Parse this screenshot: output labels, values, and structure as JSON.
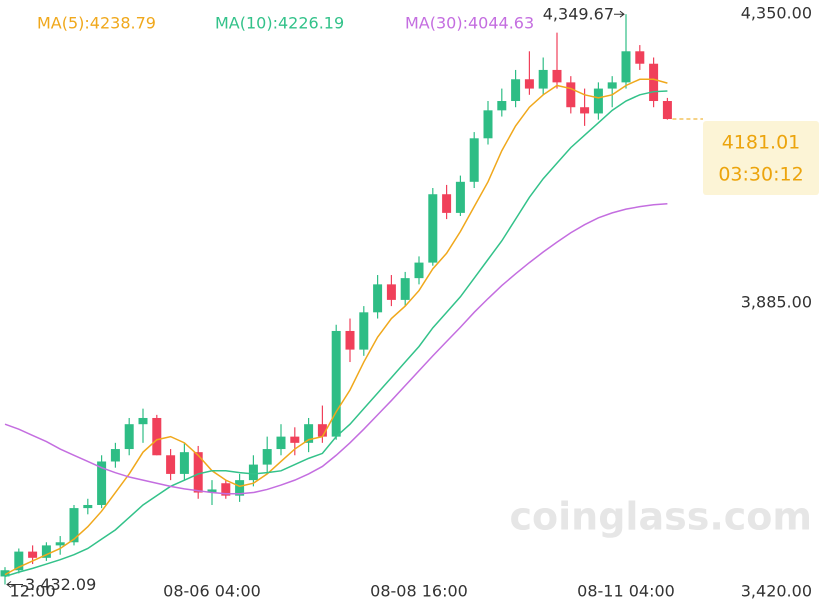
{
  "chart_data": {
    "type": "candlestick",
    "categories": [
      null,
      null,
      "12:00",
      null,
      null,
      null,
      null,
      null,
      null,
      null,
      null,
      null,
      null,
      null,
      null,
      "08-06 04:00",
      null,
      null,
      null,
      null,
      null,
      null,
      null,
      null,
      null,
      null,
      null,
      null,
      null,
      null,
      "08-08 16:00",
      null,
      null,
      null,
      null,
      null,
      null,
      null,
      null,
      null,
      null,
      null,
      null,
      null,
      null,
      "08-11 04:00",
      null,
      null,
      null
    ],
    "ohlc": [
      [
        3445,
        3460,
        3432.09,
        3455
      ],
      [
        3455,
        3490,
        3450,
        3485
      ],
      [
        3485,
        3495,
        3465,
        3475
      ],
      [
        3475,
        3500,
        3470,
        3495
      ],
      [
        3495,
        3510,
        3480,
        3500
      ],
      [
        3500,
        3560,
        3495,
        3555
      ],
      [
        3555,
        3570,
        3545,
        3560
      ],
      [
        3560,
        3640,
        3555,
        3630
      ],
      [
        3630,
        3660,
        3620,
        3650
      ],
      [
        3650,
        3700,
        3640,
        3690
      ],
      [
        3690,
        3715,
        3660,
        3700
      ],
      [
        3700,
        3705,
        3640,
        3640
      ],
      [
        3640,
        3650,
        3600,
        3610
      ],
      [
        3610,
        3660,
        3600,
        3645
      ],
      [
        3645,
        3655,
        3570,
        3580
      ],
      [
        3580,
        3600,
        3560,
        3585
      ],
      [
        3595,
        3600,
        3570,
        3575
      ],
      [
        3575,
        3610,
        3565,
        3600
      ],
      [
        3600,
        3640,
        3590,
        3625
      ],
      [
        3625,
        3670,
        3610,
        3650
      ],
      [
        3650,
        3690,
        3640,
        3670
      ],
      [
        3670,
        3685,
        3640,
        3660
      ],
      [
        3660,
        3700,
        3645,
        3690
      ],
      [
        3690,
        3720,
        3660,
        3670
      ],
      [
        3670,
        3850,
        3665,
        3840
      ],
      [
        3840,
        3860,
        3790,
        3810
      ],
      [
        3810,
        3880,
        3800,
        3870
      ],
      [
        3870,
        3930,
        3860,
        3915
      ],
      [
        3915,
        3930,
        3880,
        3890
      ],
      [
        3890,
        3935,
        3880,
        3925
      ],
      [
        3925,
        3960,
        3915,
        3950
      ],
      [
        3950,
        4070,
        3945,
        4060
      ],
      [
        4060,
        4075,
        4020,
        4030
      ],
      [
        4030,
        4090,
        4025,
        4080
      ],
      [
        4080,
        4160,
        4070,
        4150
      ],
      [
        4150,
        4210,
        4140,
        4195
      ],
      [
        4195,
        4230,
        4185,
        4210
      ],
      [
        4210,
        4260,
        4200,
        4245
      ],
      [
        4245,
        4290,
        4220,
        4230
      ],
      [
        4230,
        4280,
        4220,
        4260
      ],
      [
        4260,
        4320,
        4230,
        4240
      ],
      [
        4240,
        4250,
        4190,
        4200
      ],
      [
        4200,
        4230,
        4170,
        4190
      ],
      [
        4190,
        4240,
        4180,
        4230
      ],
      [
        4230,
        4250,
        4200,
        4240
      ],
      [
        4240,
        4349.67,
        4230,
        4290
      ],
      [
        4290,
        4300,
        4260,
        4270
      ],
      [
        4270,
        4280,
        4200,
        4210
      ],
      [
        4210,
        4215,
        4180,
        4181.01
      ]
    ],
    "up_color": "#2ebd85",
    "down_color": "#f0405a",
    "series": [
      {
        "name": "MA(5):4238.79",
        "color": "#f0a81c",
        "values": [
          3448,
          3460,
          3470,
          3480,
          3490,
          3505,
          3525,
          3550,
          3580,
          3610,
          3645,
          3665,
          3670,
          3660,
          3640,
          3615,
          3600,
          3590,
          3595,
          3610,
          3630,
          3650,
          3665,
          3670,
          3710,
          3745,
          3790,
          3830,
          3860,
          3880,
          3905,
          3940,
          3965,
          4000,
          4040,
          4080,
          4130,
          4170,
          4200,
          4220,
          4235,
          4230,
          4220,
          4215,
          4220,
          4235,
          4245,
          4245,
          4238.79
        ]
      },
      {
        "name": "MA(10):4226.19",
        "color": "#33c28a",
        "values": [
          3445,
          3452,
          3458,
          3465,
          3472,
          3480,
          3490,
          3505,
          3520,
          3540,
          3560,
          3575,
          3590,
          3600,
          3610,
          3615,
          3615,
          3612,
          3610,
          3612,
          3615,
          3625,
          3635,
          3643,
          3670,
          3690,
          3715,
          3740,
          3765,
          3790,
          3815,
          3845,
          3870,
          3895,
          3925,
          3955,
          3985,
          4020,
          4055,
          4085,
          4110,
          4135,
          4155,
          4175,
          4195,
          4210,
          4220,
          4225,
          4226.19
        ]
      },
      {
        "name": "MA(30):4044.63",
        "color": "#c46ee0",
        "values": [
          3690,
          3682,
          3672,
          3662,
          3650,
          3640,
          3630,
          3620,
          3612,
          3605,
          3600,
          3595,
          3590,
          3586,
          3583,
          3580,
          3578,
          3578,
          3580,
          3585,
          3592,
          3600,
          3610,
          3622,
          3640,
          3660,
          3682,
          3705,
          3728,
          3752,
          3776,
          3800,
          3823,
          3846,
          3870,
          3892,
          3913,
          3932,
          3950,
          3967,
          3983,
          3998,
          4011,
          4022,
          4030,
          4036,
          4040,
          4043,
          4044.63
        ]
      }
    ],
    "ylim": [
      3420,
      4350
    ],
    "yticks": [
      {
        "value": 3420,
        "label": "3,420.00"
      },
      {
        "value": 3885,
        "label": "3,885.00"
      },
      {
        "value": 4350,
        "label": "4,350.00"
      }
    ],
    "high_label": "4,349.67",
    "low_label": "3,432.09",
    "price_label": "4181.01",
    "countdown": "03:30:12",
    "watermark": "coinglass.com"
  }
}
